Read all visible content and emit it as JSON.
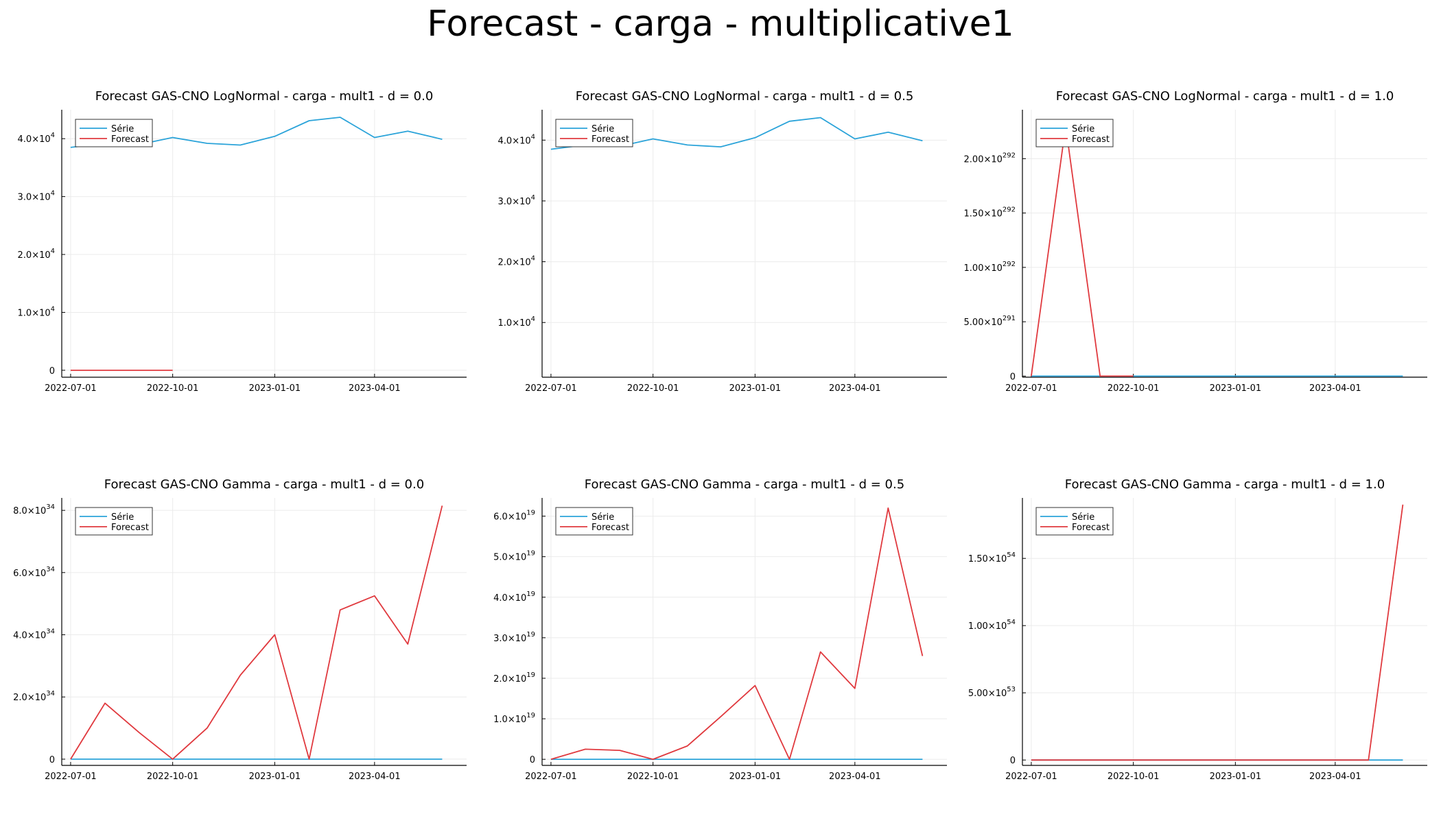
{
  "figure_title": "Forecast - carga - multiplicative1",
  "colors": {
    "serie": "#2aa3d9",
    "forecast": "#e0393e",
    "grid": "#ebebeb",
    "axis": "#000000"
  },
  "chart_data": [
    {
      "type": "line",
      "title": "Forecast GAS-CNO LogNormal - carga - mult1 - d = 0.0",
      "ylim": [
        -1200,
        45000
      ],
      "exp": 4,
      "tick_decimals": 1,
      "yticks": [
        0,
        10000,
        20000,
        30000,
        40000
      ],
      "xlim": [
        "2022-06-23",
        "2023-06-23"
      ],
      "xticks": [
        "2022-07-01",
        "2022-10-01",
        "2023-01-01",
        "2023-04-01"
      ],
      "legend": [
        "Série",
        "Forecast"
      ],
      "legend_position": "top-left",
      "grid": true,
      "series": [
        {
          "name": "Série",
          "x": [
            "2022-07-01",
            "2022-08-01",
            "2022-09-01",
            "2022-10-01",
            "2022-11-01",
            "2022-12-01",
            "2023-01-01",
            "2023-02-01",
            "2023-03-01",
            "2023-04-01",
            "2023-05-01",
            "2023-06-01"
          ],
          "values": [
            38500,
            39200,
            39000,
            40200,
            39200,
            38900,
            40400,
            43100,
            43700,
            40200,
            41300,
            39900
          ]
        },
        {
          "name": "Forecast",
          "x": [
            "2022-07-01",
            "2022-08-01",
            "2022-09-01",
            "2022-10-01"
          ],
          "values": [
            0,
            0,
            0,
            0
          ]
        }
      ]
    },
    {
      "type": "line",
      "title": "Forecast GAS-CNO LogNormal - carga - mult1 - d = 0.5",
      "ylim": [
        1000,
        45000
      ],
      "exp": 4,
      "tick_decimals": 1,
      "yticks": [
        10000,
        20000,
        30000,
        40000
      ],
      "xlim": [
        "2022-06-23",
        "2023-06-23"
      ],
      "xticks": [
        "2022-07-01",
        "2022-10-01",
        "2023-01-01",
        "2023-04-01"
      ],
      "legend": [
        "Série",
        "Forecast"
      ],
      "legend_position": "top-left",
      "grid": true,
      "series": [
        {
          "name": "Série",
          "x": [
            "2022-07-01",
            "2022-08-01",
            "2022-09-01",
            "2022-10-01",
            "2022-11-01",
            "2022-12-01",
            "2023-01-01",
            "2023-02-01",
            "2023-03-01",
            "2023-04-01",
            "2023-05-01",
            "2023-06-01"
          ],
          "values": [
            38500,
            39200,
            39000,
            40200,
            39200,
            38900,
            40400,
            43100,
            43700,
            40200,
            41300,
            39900
          ]
        },
        {
          "name": "Forecast",
          "x": [
            "2022-07-01"
          ],
          "values": [
            38500
          ]
        }
      ]
    },
    {
      "type": "line",
      "title": "Forecast GAS-CNO LogNormal - carga - mult1 - d = 1.0",
      "ylim": [
        -1e+290,
        2.45e+292
      ],
      "exp": 292,
      "tick_decimals": 2,
      "yticks": [
        0,
        5e+291,
        1e+292,
        1.5e+292,
        2e+292
      ],
      "xlim": [
        "2022-06-23",
        "2023-06-23"
      ],
      "xticks": [
        "2022-07-01",
        "2022-10-01",
        "2023-01-01",
        "2023-04-01"
      ],
      "legend": [
        "Série",
        "Forecast"
      ],
      "legend_position": "top-left",
      "grid": true,
      "series": [
        {
          "name": "Série",
          "x": [
            "2022-07-01",
            "2023-06-01"
          ],
          "values": [
            0,
            0
          ]
        },
        {
          "name": "Forecast",
          "x": [
            "2022-07-01",
            "2022-08-01",
            "2022-09-01",
            "2022-10-01"
          ],
          "values": [
            0,
            2.3e+292,
            0,
            0
          ]
        }
      ]
    },
    {
      "type": "line",
      "title": "Forecast GAS-CNO Gamma - carga - mult1 - d = 0.0",
      "ylim": [
        -2e+33,
        8.4e+34
      ],
      "exp": 34,
      "tick_decimals": 1,
      "yticks": [
        0,
        2e+34,
        4e+34,
        6e+34,
        8e+34
      ],
      "xlim": [
        "2022-06-23",
        "2023-06-23"
      ],
      "xticks": [
        "2022-07-01",
        "2022-10-01",
        "2023-01-01",
        "2023-04-01"
      ],
      "legend": [
        "Série",
        "Forecast"
      ],
      "legend_position": "top-left",
      "grid": true,
      "series": [
        {
          "name": "Série",
          "x": [
            "2022-07-01",
            "2023-06-01"
          ],
          "values": [
            0,
            0
          ]
        },
        {
          "name": "Forecast",
          "x": [
            "2022-07-01",
            "2022-08-01",
            "2022-09-01",
            "2022-10-01",
            "2022-11-01",
            "2022-12-01",
            "2023-01-01",
            "2023-02-01",
            "2023-03-01",
            "2023-04-01",
            "2023-05-01",
            "2023-06-01"
          ],
          "values": [
            0,
            1.8e+34,
            8.5e+33,
            0,
            1e+34,
            2.7e+34,
            4e+34,
            0,
            4.8e+34,
            5.25e+34,
            3.7e+34,
            8.15e+34
          ]
        }
      ]
    },
    {
      "type": "line",
      "title": "Forecast GAS-CNO Gamma - carga - mult1 - d = 0.5",
      "ylim": [
        -1.5e+18,
        6.45e+19
      ],
      "exp": 19,
      "tick_decimals": 1,
      "yticks": [
        0,
        1e+19,
        2e+19,
        3e+19,
        4e+19,
        5e+19,
        6e+19
      ],
      "xlim": [
        "2022-06-23",
        "2023-06-23"
      ],
      "xticks": [
        "2022-07-01",
        "2022-10-01",
        "2023-01-01",
        "2023-04-01"
      ],
      "legend": [
        "Série",
        "Forecast"
      ],
      "legend_position": "top-left",
      "grid": true,
      "series": [
        {
          "name": "Série",
          "x": [
            "2022-07-01",
            "2023-06-01"
          ],
          "values": [
            0,
            0
          ]
        },
        {
          "name": "Forecast",
          "x": [
            "2022-07-01",
            "2022-08-01",
            "2022-09-01",
            "2022-10-01",
            "2022-11-01",
            "2022-12-01",
            "2023-01-01",
            "2023-02-01",
            "2023-03-01",
            "2023-04-01",
            "2023-05-01",
            "2023-06-01"
          ],
          "values": [
            0,
            2.5e+18,
            2.2e+18,
            0,
            3.3e+18,
            1.05e+19,
            1.82e+19,
            0,
            2.65e+19,
            1.75e+19,
            6.2e+19,
            2.55e+19
          ]
        }
      ]
    },
    {
      "type": "line",
      "title": "Forecast GAS-CNO Gamma - carga - mult1 - d = 1.0",
      "ylim": [
        -4e+52,
        1.95e+54
      ],
      "exp": 54,
      "tick_decimals": 2,
      "yticks": [
        0,
        5e+53,
        1e+54,
        1.5e+54
      ],
      "xlim": [
        "2022-06-23",
        "2023-06-23"
      ],
      "xticks": [
        "2022-07-01",
        "2022-10-01",
        "2023-01-01",
        "2023-04-01"
      ],
      "legend": [
        "Série",
        "Forecast"
      ],
      "legend_position": "top-left",
      "grid": true,
      "series": [
        {
          "name": "Série",
          "x": [
            "2022-07-01",
            "2023-06-01"
          ],
          "values": [
            0,
            0
          ]
        },
        {
          "name": "Forecast",
          "x": [
            "2022-07-01",
            "2022-08-01",
            "2022-09-01",
            "2022-10-01",
            "2022-11-01",
            "2022-12-01",
            "2023-01-01",
            "2023-02-01",
            "2023-03-01",
            "2023-04-01",
            "2023-05-01",
            "2023-06-01"
          ],
          "values": [
            0,
            0,
            0,
            0,
            0,
            0,
            0,
            0,
            0,
            0,
            0,
            1.9e+54
          ]
        }
      ]
    }
  ]
}
